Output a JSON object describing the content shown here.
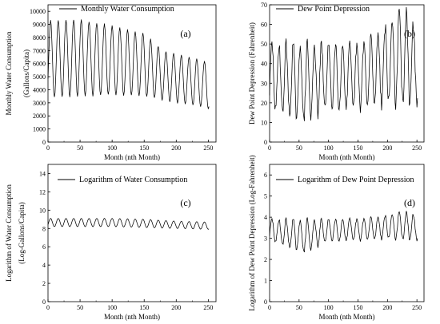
{
  "chart_data": [
    {
      "panel": "(a)",
      "type": "line",
      "legend": "Monthly Water Consumption",
      "legend_position": "top",
      "xlabel": "Month (nth Month)",
      "ylabel": [
        "Monthly Water Consumption",
        "(Gallons/Capita)"
      ],
      "xlim": [
        0,
        262
      ],
      "ylim": [
        0,
        10500
      ],
      "xticks": [
        0,
        50,
        100,
        150,
        200,
        250
      ],
      "yticks": [
        0,
        1000,
        2000,
        3000,
        4000,
        5000,
        6000,
        7000,
        8000,
        9000,
        10000
      ],
      "grid": false,
      "series_model": {
        "n_points": 252,
        "period_months": 12,
        "peaks": [
          [
            4,
            9300
          ],
          [
            50,
            9400
          ],
          [
            100,
            8900
          ],
          [
            150,
            8300
          ],
          [
            180,
            7000
          ],
          [
            220,
            6500
          ],
          [
            250,
            6100
          ]
        ],
        "troughs": [
          [
            10,
            3400
          ],
          [
            50,
            3500
          ],
          [
            100,
            3600
          ],
          [
            150,
            3500
          ],
          [
            200,
            3000
          ],
          [
            240,
            2700
          ],
          [
            250,
            2500
          ]
        ]
      }
    },
    {
      "panel": "(b)",
      "type": "line",
      "legend": "Dew Point Depression",
      "legend_position": "top",
      "xlabel": "Month (nth Month)",
      "ylabel": [
        "Dew Point Depression (Fahrenheit)"
      ],
      "xlim": [
        0,
        262
      ],
      "ylim": [
        0,
        70
      ],
      "xticks": [
        0,
        50,
        100,
        150,
        200,
        250
      ],
      "yticks": [
        0,
        10,
        20,
        30,
        40,
        50,
        60,
        70
      ],
      "grid": false,
      "series_model": {
        "n_points": 252,
        "period_months": 12,
        "peaks": [
          [
            0,
            50
          ],
          [
            100,
            50
          ],
          [
            150,
            49
          ],
          [
            200,
            60
          ],
          [
            225,
            68
          ],
          [
            250,
            58
          ]
        ],
        "troughs": [
          [
            0,
            17
          ],
          [
            60,
            10
          ],
          [
            100,
            18
          ],
          [
            150,
            17
          ],
          [
            200,
            20
          ],
          [
            250,
            19
          ]
        ]
      }
    },
    {
      "panel": "(c)",
      "type": "line",
      "legend": "Logarithm of Water Consumption",
      "legend_position": "top",
      "xlabel": "Month (nth Month)",
      "ylabel": [
        "Logarithm of Water Consumption",
        "(Log-Gallons/Capita)"
      ],
      "xlim": [
        0,
        262
      ],
      "ylim": [
        0,
        15
      ],
      "xticks": [
        0,
        50,
        100,
        150,
        200,
        250
      ],
      "yticks": [
        0,
        2,
        4,
        6,
        8,
        10,
        12,
        14
      ],
      "grid": false,
      "series_model": {
        "n_points": 252,
        "period_months": 12,
        "peaks": [
          [
            0,
            9.1
          ],
          [
            100,
            9.1
          ],
          [
            150,
            9.0
          ],
          [
            200,
            8.8
          ],
          [
            250,
            8.7
          ]
        ],
        "troughs": [
          [
            0,
            8.2
          ],
          [
            100,
            8.2
          ],
          [
            150,
            8.1
          ],
          [
            200,
            8.0
          ],
          [
            250,
            7.9
          ]
        ]
      }
    },
    {
      "panel": "(d)",
      "type": "line",
      "legend": "Logarithm of Dew Point Depression",
      "legend_position": "top",
      "xlabel": "Month (nth Month)",
      "ylabel": [
        "Logarithm of Dew Point Depression (Log-Fahrenheit)"
      ],
      "xlim": [
        0,
        262
      ],
      "ylim": [
        0,
        6.5
      ],
      "xticks": [
        0,
        50,
        100,
        150,
        200,
        250
      ],
      "yticks": [
        0,
        1,
        2,
        3,
        4,
        5,
        6
      ],
      "grid": false,
      "series_model": {
        "n_points": 252,
        "period_months": 12,
        "peaks": [
          [
            0,
            3.9
          ],
          [
            100,
            3.9
          ],
          [
            150,
            3.9
          ],
          [
            200,
            4.1
          ],
          [
            225,
            4.25
          ],
          [
            250,
            4.1
          ]
        ],
        "troughs": [
          [
            0,
            2.9
          ],
          [
            60,
            2.3
          ],
          [
            100,
            2.9
          ],
          [
            150,
            2.9
          ],
          [
            200,
            3.0
          ],
          [
            250,
            2.9
          ]
        ]
      }
    }
  ]
}
